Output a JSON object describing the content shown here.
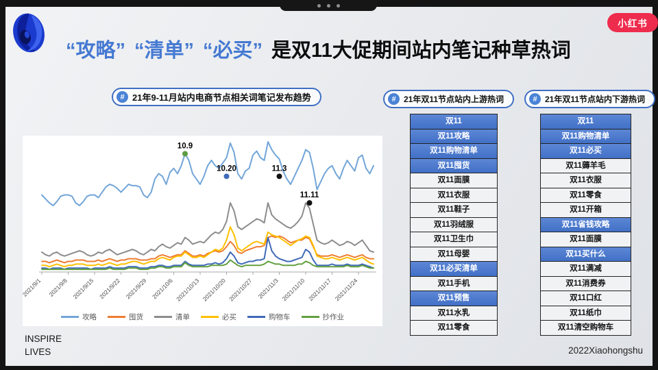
{
  "logos": {
    "xiaohongshu": "小红书"
  },
  "title": {
    "terms": [
      "“攻略”",
      "“清单”",
      "“必买”"
    ],
    "rest": "是双11大促期间站内笔记种草热词"
  },
  "badges": [
    {
      "icon": "#",
      "label": "21年9-11月站内电商节点相关词笔记发布趋势"
    },
    {
      "icon": "#",
      "label": "21年双11节点站内上游热词"
    },
    {
      "icon": "#",
      "label": "21年双11节点站内下游热词"
    }
  ],
  "tables": [
    {
      "name": "upstream",
      "rows": [
        {
          "text": "双11",
          "hot": true
        },
        {
          "text": "双11攻略",
          "hot": true
        },
        {
          "text": "双11购物清单",
          "hot": true
        },
        {
          "text": "双11囤货",
          "hot": true
        },
        {
          "text": "双11面膜",
          "hot": false
        },
        {
          "text": "双11衣服",
          "hot": false
        },
        {
          "text": "双11鞋子",
          "hot": false
        },
        {
          "text": "双11羽绒服",
          "hot": false
        },
        {
          "text": "双11卫生巾",
          "hot": false
        },
        {
          "text": "双11母婴",
          "hot": false
        },
        {
          "text": "双11必买清单",
          "hot": true
        },
        {
          "text": "双11手机",
          "hot": false
        },
        {
          "text": "双11预售",
          "hot": true
        },
        {
          "text": "双11水乳",
          "hot": false
        },
        {
          "text": "双11零食",
          "hot": false
        }
      ]
    },
    {
      "name": "downstream",
      "rows": [
        {
          "text": "双11",
          "hot": true
        },
        {
          "text": "双11购物清单",
          "hot": true
        },
        {
          "text": "双11必买",
          "hot": true
        },
        {
          "text": "双11薅羊毛",
          "hot": false
        },
        {
          "text": "双11衣服",
          "hot": false
        },
        {
          "text": "双11零食",
          "hot": false
        },
        {
          "text": "双11开箱",
          "hot": false
        },
        {
          "text": "双11省钱攻略",
          "hot": true
        },
        {
          "text": "双11面膜",
          "hot": false
        },
        {
          "text": "双11买什么",
          "hot": true
        },
        {
          "text": "双11满减",
          "hot": false
        },
        {
          "text": "双11消费券",
          "hot": false
        },
        {
          "text": "双11口红",
          "hot": false
        },
        {
          "text": "双11纸巾",
          "hot": false
        },
        {
          "text": "双11清空购物车",
          "hot": false
        }
      ]
    }
  ],
  "footer": {
    "left_line1": "INSPIRE",
    "left_line2": "LIVES",
    "right": "2022Xiaohongshu"
  },
  "chart_data": {
    "type": "line",
    "title": "21年9-11月站内电商节点相关词笔记发布趋势",
    "x_start": "2021/9/1",
    "x_end": "2021/11/28",
    "tick_interval_days": 7,
    "x_tick_labels": [
      "2021/9/1",
      "2021/9/8",
      "2021/9/15",
      "2021/9/22",
      "2021/9/29",
      "2021/10/6",
      "2021/10/13",
      "2021/10/20",
      "2021/10/27",
      "2021/11/3",
      "2021/11/10",
      "2021/11/17",
      "2021/11/24"
    ],
    "ylim": [
      0,
      105
    ],
    "grid": false,
    "legend_position": "bottom",
    "series": [
      {
        "name": "攻略",
        "color": "#72a5d8",
        "values": [
          58,
          55,
          52,
          50,
          53,
          57,
          58,
          58,
          57,
          52,
          50,
          53,
          57,
          58,
          58,
          56,
          60,
          64,
          66,
          65,
          63,
          60,
          63,
          66,
          65,
          65,
          64,
          58,
          56,
          60,
          70,
          74,
          72,
          66,
          75,
          78,
          74,
          80,
          89,
          84,
          74,
          70,
          66,
          72,
          80,
          84,
          80,
          78,
          82,
          86,
          97,
          90,
          74,
          70,
          76,
          78,
          88,
          91,
          86,
          84,
          98,
          92,
          88,
          85,
          76,
          70,
          66,
          72,
          78,
          84,
          92,
          90,
          78,
          62,
          68,
          74,
          78,
          80,
          74,
          70,
          78,
          84,
          80,
          76,
          86,
          88,
          78,
          74,
          80
        ]
      },
      {
        "name": "囤货",
        "color": "#ed7d31",
        "values": [
          8,
          8,
          7,
          8,
          9,
          8,
          7,
          8,
          8,
          9,
          9,
          9,
          8,
          8,
          8,
          9,
          8,
          9,
          10,
          9,
          8,
          9,
          9,
          10,
          10,
          10,
          9,
          9,
          9,
          10,
          10,
          12,
          13,
          12,
          11,
          12,
          13,
          13,
          16,
          14,
          12,
          12,
          13,
          12,
          14,
          15,
          16,
          15,
          16,
          19,
          23,
          20,
          15,
          14,
          16,
          17,
          18,
          19,
          19,
          20,
          26,
          27,
          26,
          27,
          26,
          24,
          22,
          23,
          24,
          24,
          26,
          25,
          19,
          13,
          12,
          12,
          12,
          13,
          12,
          11,
          12,
          13,
          12,
          11,
          12,
          13,
          11,
          10,
          10
        ]
      },
      {
        "name": "清单",
        "color": "#8c8c8c",
        "values": [
          15,
          13,
          12,
          14,
          15,
          13,
          12,
          13,
          14,
          15,
          16,
          15,
          13,
          12,
          13,
          15,
          14,
          16,
          17,
          15,
          13,
          14,
          15,
          16,
          17,
          16,
          14,
          13,
          15,
          17,
          16,
          19,
          21,
          19,
          18,
          20,
          22,
          21,
          26,
          24,
          21,
          22,
          23,
          22,
          25,
          28,
          30,
          29,
          32,
          38,
          52,
          46,
          34,
          32,
          34,
          36,
          38,
          40,
          39,
          37,
          52,
          43,
          40,
          38,
          36,
          34,
          33,
          35,
          38,
          42,
          52,
          48,
          36,
          24,
          22,
          21,
          22,
          24,
          22,
          20,
          21,
          23,
          22,
          20,
          22,
          24,
          20,
          16,
          15
        ]
      },
      {
        "name": "必买",
        "color": "#ffc000",
        "values": [
          5,
          5,
          4,
          5,
          6,
          5,
          4,
          5,
          5,
          6,
          6,
          6,
          5,
          5,
          5,
          6,
          5,
          6,
          7,
          6,
          5,
          6,
          6,
          7,
          8,
          8,
          7,
          6,
          7,
          8,
          8,
          10,
          11,
          10,
          9,
          11,
          12,
          12,
          15,
          13,
          11,
          11,
          12,
          11,
          13,
          15,
          17,
          16,
          18,
          24,
          34,
          28,
          18,
          16,
          18,
          20,
          22,
          23,
          22,
          21,
          30,
          28,
          27,
          26,
          24,
          22,
          20,
          22,
          24,
          25,
          27,
          26,
          20,
          12,
          11,
          10,
          10,
          11,
          10,
          9,
          10,
          11,
          10,
          9,
          10,
          11,
          9,
          7,
          6
        ]
      },
      {
        "name": "购物车",
        "color": "#3f6ab8",
        "values": [
          3,
          3,
          2,
          3,
          3,
          3,
          2,
          3,
          3,
          3,
          3,
          3,
          3,
          2,
          3,
          3,
          3,
          3,
          4,
          3,
          3,
          3,
          3,
          4,
          4,
          4,
          3,
          3,
          3,
          4,
          4,
          5,
          5,
          4,
          4,
          5,
          5,
          5,
          8,
          6,
          5,
          5,
          5,
          5,
          6,
          6,
          7,
          6,
          7,
          10,
          15,
          12,
          7,
          6,
          7,
          8,
          8,
          9,
          9,
          10,
          26,
          16,
          12,
          10,
          9,
          8,
          8,
          9,
          10,
          11,
          17,
          15,
          9,
          5,
          5,
          5,
          5,
          6,
          5,
          5,
          5,
          6,
          5,
          5,
          5,
          6,
          5,
          4,
          3
        ]
      },
      {
        "name": "抄作业",
        "color": "#62a03e",
        "values": [
          2,
          2,
          2,
          2,
          2,
          2,
          2,
          2,
          2,
          2,
          2,
          2,
          2,
          2,
          2,
          2,
          2,
          2,
          3,
          2,
          2,
          2,
          2,
          3,
          3,
          3,
          2,
          2,
          2,
          3,
          3,
          4,
          4,
          3,
          3,
          4,
          4,
          4,
          7,
          5,
          4,
          4,
          4,
          4,
          4,
          5,
          5,
          5,
          5,
          6,
          9,
          7,
          5,
          4,
          5,
          5,
          5,
          5,
          5,
          6,
          8,
          7,
          6,
          6,
          5,
          5,
          5,
          5,
          6,
          6,
          8,
          7,
          5,
          4,
          4,
          4,
          4,
          4,
          4,
          4,
          4,
          5,
          4,
          4,
          4,
          5,
          4,
          3,
          3
        ]
      }
    ],
    "annotations": [
      {
        "label": "10.9",
        "day": 38,
        "v": 89,
        "dot_color": "#5e9c43"
      },
      {
        "label": "10.20",
        "day": 49,
        "v": 72,
        "dot_color": "#3f6ab8"
      },
      {
        "label": "11.3",
        "day": 63,
        "v": 72,
        "dot_color": "#111111"
      },
      {
        "label": "11.11",
        "day": 71,
        "v": 52,
        "dot_color": "#111111"
      }
    ]
  }
}
